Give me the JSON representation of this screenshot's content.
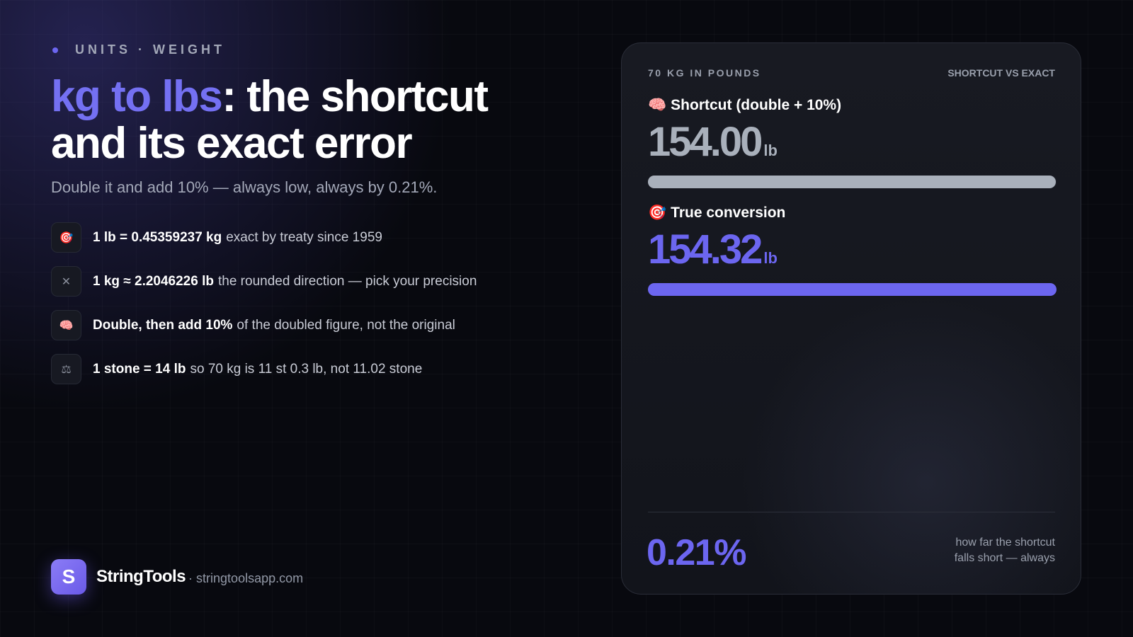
{
  "header": {
    "eyebrow": "UNITS · WEIGHT",
    "title_highlight": "kg to lbs",
    "title_rest": ": the shortcut and its exact error",
    "subtitle": "Double it and add 10% — always low, always by 0.21%."
  },
  "facts": [
    {
      "icon": "🎯",
      "bold": "1 lb = 0.45359237 kg",
      "text": "exact by treaty since 1959"
    },
    {
      "icon": "✕",
      "bold": "1 kg ≈ 2.2046226 lb",
      "text": "the rounded direction — pick your precision"
    },
    {
      "icon": "🧠",
      "bold": "Double, then add 10%",
      "text": "of the doubled figure, not the original"
    },
    {
      "icon": "⚖",
      "bold": "1 stone = 14 lb",
      "text": "so 70 kg is 11 st 0.3 lb, not 11.02 stone"
    }
  ],
  "brand": {
    "logo": "S",
    "name": "StringTools",
    "url": "· stringtoolsapp.com"
  },
  "card": {
    "label": "70 KG IN POUNDS",
    "badge": "SHORTCUT VS EXACT",
    "rows": [
      {
        "icon": "🧠",
        "label": "Shortcut (double + 10%)",
        "value": "154.00",
        "unit": "lb"
      },
      {
        "icon": "🎯",
        "label": "True conversion",
        "value": "154.32",
        "unit": "lb"
      }
    ],
    "footer": {
      "value": "0.21%",
      "note": "how far the shortcut falls short — always"
    }
  }
}
